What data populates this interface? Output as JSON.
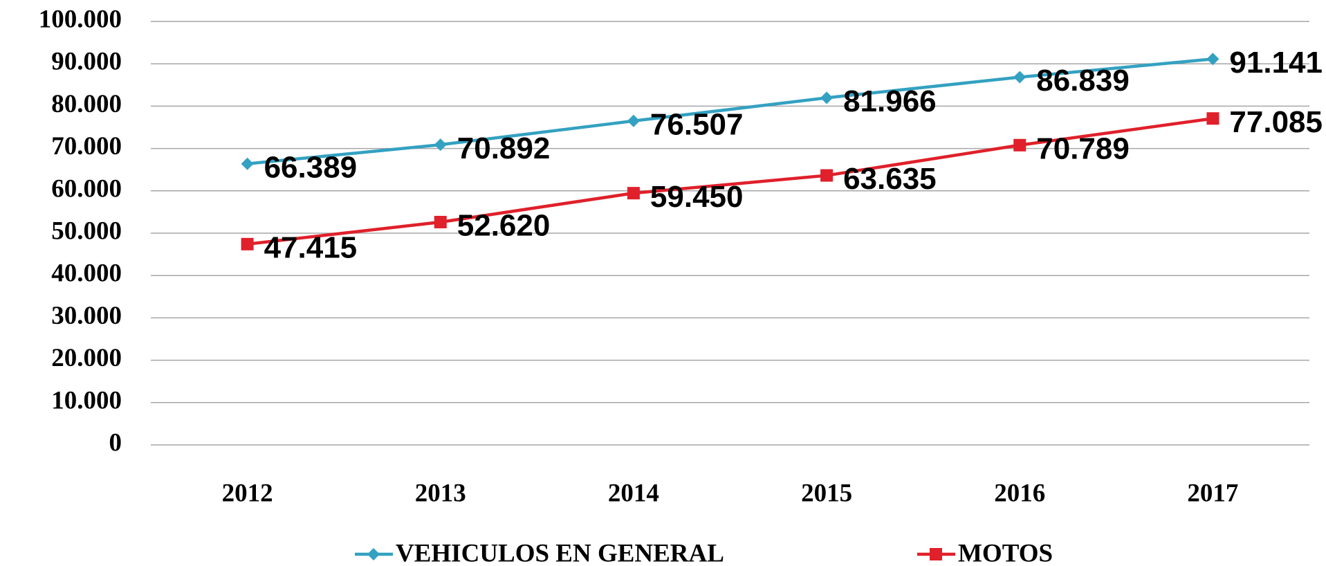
{
  "chart_data": {
    "type": "line",
    "categories": [
      "2012",
      "2013",
      "2014",
      "2015",
      "2016",
      "2017"
    ],
    "series": [
      {
        "name": "VEHICULOS EN GENERAL",
        "color": "#33a1c1",
        "marker": "diamond",
        "values": [
          66389,
          70892,
          76507,
          81966,
          86839,
          91141
        ],
        "value_labels": [
          "66.389",
          "70.892",
          "76.507",
          "81.966",
          "86.839",
          "91.141"
        ]
      },
      {
        "name": "MOTOS",
        "color": "#e0202a",
        "marker": "square",
        "values": [
          47415,
          52620,
          59450,
          63635,
          70789,
          77085
        ],
        "value_labels": [
          "47.415",
          "52.620",
          "59.450",
          "63.635",
          "70.789",
          "77.085"
        ]
      }
    ],
    "ylim": [
      0,
      100000
    ],
    "yticks": [
      0,
      {
        "value": 10000,
        "label": "10.000"
      },
      {
        "value": 20000,
        "label": "20.000"
      },
      {
        "value": 30000,
        "label": "30.000"
      },
      {
        "value": 40000,
        "label": "40.000"
      },
      {
        "value": 50000,
        "label": "50.000"
      },
      {
        "value": 60000,
        "label": "60.000"
      },
      {
        "value": 70000,
        "label": "70.000"
      },
      {
        "value": 80000,
        "label": "80.000"
      },
      {
        "value": 90000,
        "label": "90.000"
      },
      {
        "value": 100000,
        "label": "100.000"
      }
    ],
    "grid": true,
    "legend": "bottom"
  }
}
